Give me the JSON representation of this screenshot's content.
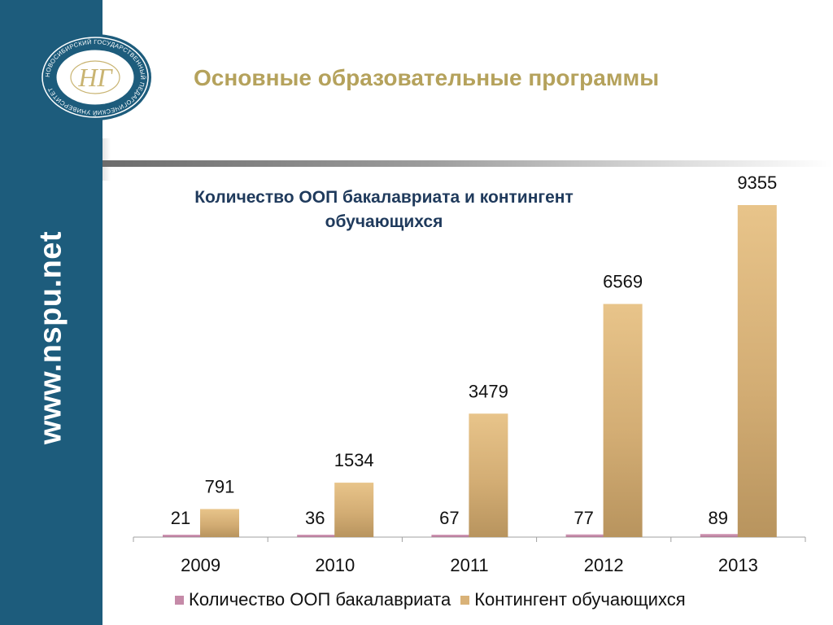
{
  "sidebar": {
    "url": "www.nspu.net",
    "background_color": "#1d5c7c"
  },
  "logo": {
    "ring_text": "НОВОСИБИРСКИЙ ГОСУДАРСТВЕННЫЙ ПЕДАГОГИЧЕСКИЙ УНИВЕРСИТЕТ",
    "monogram": "НГ",
    "color": "#1d5c7c",
    "accent": "#c9b472"
  },
  "slide": {
    "title": "Основные образовательные программы",
    "title_color": "#b5a25c"
  },
  "chart_data": {
    "type": "bar",
    "title": "Количество ООП бакалавриата и контингент обучающихся",
    "categories": [
      "2009",
      "2010",
      "2011",
      "2012",
      "2013"
    ],
    "series": [
      {
        "name": "Количество ООП бакалавриата",
        "values": [
          21,
          36,
          67,
          77,
          89
        ],
        "color": "#c58aa8"
      },
      {
        "name": "Контингент обучающихся",
        "values": [
          791,
          1534,
          3479,
          6569,
          9355
        ],
        "color": "#e0bb7f"
      }
    ],
    "ylim": [
      0,
      10000
    ],
    "grid": false,
    "legend": "bottom",
    "xlabel": "",
    "ylabel": ""
  }
}
